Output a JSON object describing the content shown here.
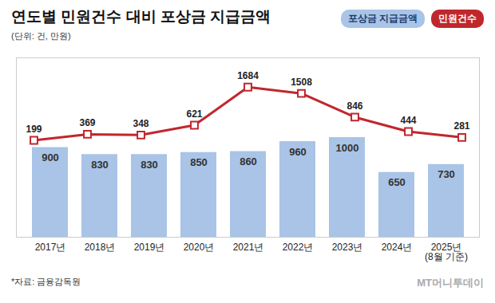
{
  "chart_data": {
    "type": "bar",
    "title": "연도별 민원건수 대비 포상금 지급금액",
    "subtitle": "(단위: 건, 만원)",
    "caption": "*자료: 금융감독원",
    "credit": "MT머니투데이",
    "categories": [
      "2017년",
      "2018년",
      "2019년",
      "2020년",
      "2021년",
      "2022년",
      "2023년",
      "2024년",
      "2025년\n(8월 기준)"
    ],
    "series": [
      {
        "name": "포상금 지급금액",
        "type": "bar",
        "color": "#a9c4e6",
        "values": [
          900,
          830,
          830,
          850,
          860,
          960,
          1000,
          650,
          730
        ]
      },
      {
        "name": "민원건수",
        "type": "line",
        "axis": "y2",
        "color": "#c0272d",
        "marker": "square",
        "values": [
          199,
          369,
          348,
          621,
          1684,
          1508,
          846,
          444,
          281
        ]
      }
    ],
    "ylim": [
      0,
      1800
    ],
    "y2lim": [
      -2500,
      2500
    ],
    "data_labels": true,
    "tick_labels": "x",
    "grid": false
  }
}
